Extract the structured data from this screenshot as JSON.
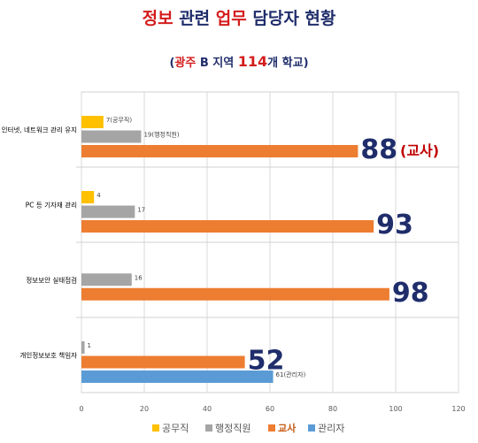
{
  "header": {
    "title_pre": "정보",
    "title_mid": " 관련 ",
    "title_hl": "업무",
    "title_post": " 담당자 현황",
    "subtitle_open": "(",
    "subtitle_region": "광주",
    "subtitle_mid": " B 지역 ",
    "subtitle_count": "114",
    "subtitle_post": "개 학교)"
  },
  "chart_data": {
    "type": "bar",
    "orientation": "horizontal",
    "categories": [
      "인터넷, 네트워크 관리 유지",
      "PC 등 기자재 관리",
      "정보보안 실태점검",
      "개인정보보호 책임자"
    ],
    "series": [
      {
        "name": "공무직",
        "color": "#ffc000",
        "values": [
          7,
          4,
          null,
          null
        ],
        "labels": [
          "7(공무직)",
          "4",
          "",
          ""
        ]
      },
      {
        "name": "행정직원",
        "color": "#a5a5a5",
        "values": [
          19,
          17,
          16,
          1
        ],
        "labels": [
          "19(행정직원)",
          "17",
          "16",
          "1"
        ]
      },
      {
        "name": "교사",
        "color": "#ed7d31",
        "values": [
          88,
          93,
          98,
          52
        ],
        "labels": [
          "88",
          "93",
          "98",
          "52"
        ]
      },
      {
        "name": "관리자",
        "color": "#5b9bd5",
        "values": [
          null,
          null,
          null,
          61
        ],
        "labels": [
          "",
          "",
          "",
          "61(관리자)"
        ]
      }
    ],
    "annotations": [
      "(교사)"
    ],
    "xlim": [
      0,
      120
    ],
    "xticks": [
      "0",
      "20",
      "40",
      "60",
      "80",
      "100",
      "120"
    ],
    "grid": true,
    "legend_position": "bottom"
  }
}
